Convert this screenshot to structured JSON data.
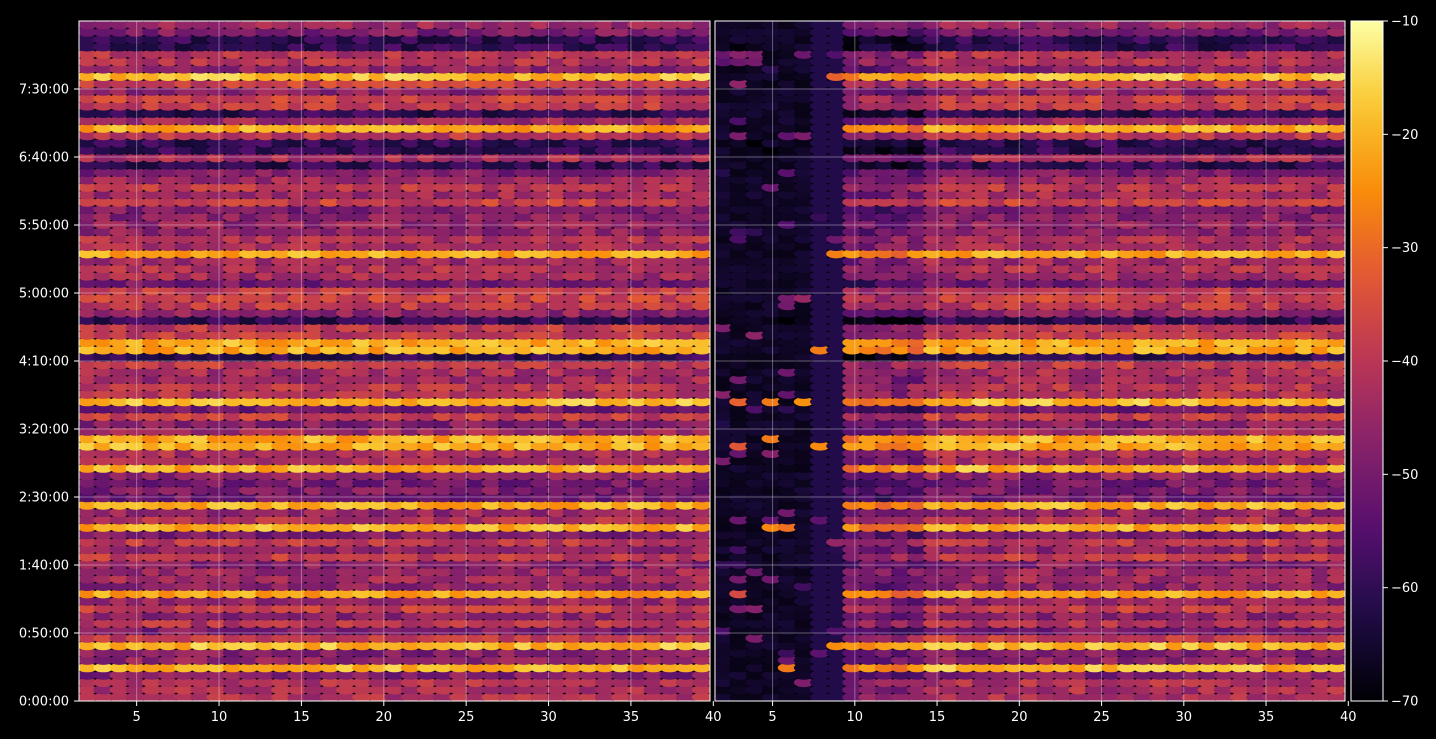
{
  "chart_data": [
    {
      "type": "heatmap",
      "title": "",
      "xlabel": "",
      "ylabel": "",
      "xlim": [
        1.5,
        39.8
      ],
      "ylim": [
        0,
        500
      ],
      "x_ticks": [
        5,
        10,
        15,
        20,
        25,
        30,
        35,
        40
      ],
      "x_tick_labels": [
        "5",
        "10",
        "15",
        "20",
        "25",
        "30",
        "35",
        "40"
      ],
      "y_ticks": [
        0,
        50,
        100,
        150,
        200,
        250,
        300,
        350,
        400,
        450
      ],
      "y_tick_labels": [
        "0:00:00",
        "0:50:00",
        "1:40:00",
        "2:30:00",
        "3:20:00",
        "4:10:00",
        "5:00:00",
        "5:50:00",
        "6:40:00",
        "7:30:00"
      ],
      "grid": true,
      "x_cells": 39,
      "y_cells": 92,
      "value_range": [
        -55,
        -18
      ],
      "bright_rows_y": [
        460,
        422,
        328,
        261,
        222,
        190,
        170,
        143,
        128,
        79,
        40,
        25
      ],
      "description_note": ""
    },
    {
      "type": "heatmap",
      "title": "",
      "xlabel": "",
      "ylabel": "",
      "xlim": [
        1.5,
        39.8
      ],
      "ylim": [
        0,
        500
      ],
      "x_ticks": [
        5,
        10,
        15,
        20,
        25,
        30,
        35,
        40
      ],
      "x_tick_labels": [
        "5",
        "10",
        "15",
        "20",
        "25",
        "30",
        "35",
        "40"
      ],
      "grid": true,
      "x_cells": 39,
      "y_cells": 92,
      "value_range": [
        -70,
        -18
      ],
      "quiet_x_range": [
        1.5,
        9.5
      ]
    }
  ],
  "colorbar": {
    "vmin": -70,
    "vmax": -10,
    "ticks": [
      -10,
      -20,
      -30,
      -40,
      -50,
      -60,
      -70
    ],
    "tick_labels": [
      "−10",
      "−20",
      "−30",
      "−40",
      "−50",
      "−60",
      "−70"
    ],
    "colormap": "inferno"
  },
  "colors": {
    "background": "#000000",
    "axis": "#ffffff",
    "grid": "rgba(255,255,255,0.35)"
  }
}
